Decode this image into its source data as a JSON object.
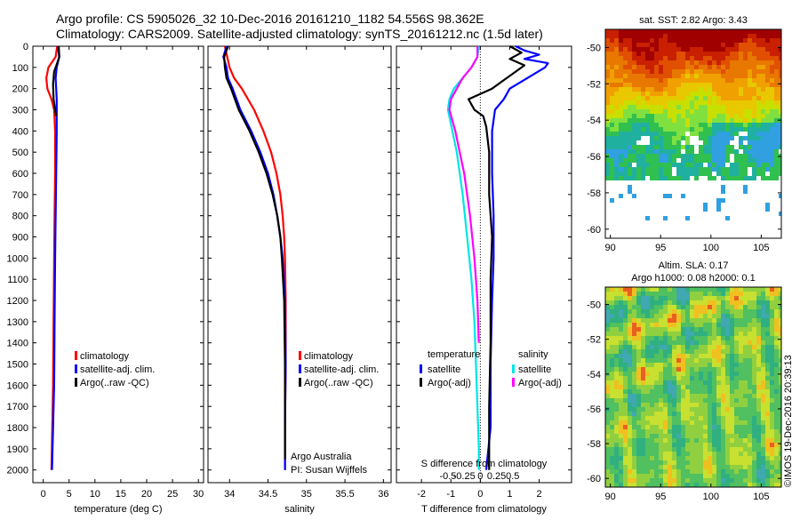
{
  "header": {
    "line1": "Argo profile: CS 5905026_32 10-Dec-2016 20161210_1182 54.556S 98.362E",
    "line2": "Climatology: CARS2009. Satellite-adjusted climatology: synTS_20161212.nc (1.5d later)"
  },
  "colors": {
    "climatology": "#ff0000",
    "satellite": "#0000ff",
    "argo": "#000000",
    "sat_salinity": "#00e5e5",
    "argo_salinity": "#ff00ff"
  },
  "chart_data": [
    {
      "type": "line",
      "id": "temperature",
      "xlabel": "temperature (deg C)",
      "xlim": [
        -2,
        31
      ],
      "ylim": [
        2060,
        0
      ],
      "xticks": [
        0,
        5,
        10,
        15,
        20,
        25,
        30
      ],
      "yticks": [
        0,
        100,
        200,
        300,
        400,
        500,
        600,
        700,
        800,
        900,
        1000,
        1100,
        1200,
        1300,
        1400,
        1500,
        1600,
        1700,
        1800,
        1900,
        2000
      ],
      "legend": [
        "climatology",
        "satellite-adj. clim.",
        "Argo(..raw -QC)"
      ],
      "series": [
        {
          "name": "climatology",
          "color": "#ff0000",
          "depth": [
            0,
            50,
            100,
            150,
            200,
            250,
            300,
            400,
            600,
            800,
            1000,
            1300,
            1600,
            2000
          ],
          "values": [
            2.7,
            2.4,
            1.0,
            0.6,
            0.8,
            1.6,
            2.1,
            2.3,
            2.3,
            2.2,
            2.1,
            2.0,
            1.9,
            1.6
          ]
        },
        {
          "name": "satellite-adj. clim.",
          "color": "#0000ff",
          "depth": [
            0,
            50,
            100,
            150,
            200,
            250,
            300,
            400,
            600,
            800,
            1000,
            1300,
            1600,
            2000
          ],
          "values": [
            2.8,
            3.1,
            2.6,
            2.4,
            2.5,
            2.6,
            2.6,
            2.6,
            2.5,
            2.4,
            2.3,
            2.2,
            2.1,
            1.7
          ]
        },
        {
          "name": "Argo(..raw -QC)",
          "color": "#000000",
          "depth": [
            0,
            50,
            80,
            120,
            180,
            250,
            300,
            330
          ],
          "values": [
            3.0,
            3.1,
            2.7,
            2.1,
            1.9,
            2.0,
            2.3,
            2.5
          ]
        }
      ]
    },
    {
      "type": "line",
      "id": "salinity",
      "xlabel": "salinity",
      "xlim": [
        33.72,
        36.1
      ],
      "ylim": [
        2060,
        0
      ],
      "xticks": [
        34,
        34.5,
        35,
        35.5,
        36
      ],
      "legend": [
        "climatology",
        "satellite-adj. clim.",
        "Argo(..raw -QC)"
      ],
      "annotations": [
        "Argo Australia",
        "PI: Susan Wijffels"
      ],
      "series": [
        {
          "name": "climatology",
          "color": "#ff0000",
          "depth": [
            0,
            50,
            100,
            150,
            200,
            300,
            400,
            500,
            600,
            700,
            800,
            900,
            1000,
            1200,
            1500,
            1800,
            2000
          ],
          "values": [
            33.94,
            33.97,
            34.0,
            34.06,
            34.16,
            34.32,
            34.44,
            34.54,
            34.61,
            34.66,
            34.69,
            34.71,
            34.72,
            34.73,
            34.73,
            34.72,
            34.72
          ]
        },
        {
          "name": "satellite-adj. clim.",
          "color": "#0000ff",
          "depth": [
            0,
            50,
            100,
            150,
            200,
            300,
            400,
            500,
            600,
            700,
            800,
            900,
            1000,
            1200,
            1500,
            1800,
            2000
          ],
          "values": [
            33.96,
            33.92,
            33.96,
            33.98,
            34.04,
            34.14,
            34.28,
            34.4,
            34.5,
            34.57,
            34.62,
            34.66,
            34.69,
            34.72,
            34.73,
            34.72,
            34.72
          ]
        },
        {
          "name": "Argo(..raw -QC)",
          "color": "#000000",
          "depth": [
            0,
            50,
            100,
            150,
            200,
            300,
            400,
            500,
            600,
            700,
            800,
            900,
            1000,
            1200,
            1500,
            1800,
            1950
          ],
          "values": [
            33.98,
            33.93,
            33.94,
            33.96,
            34.02,
            34.12,
            34.26,
            34.38,
            34.48,
            34.56,
            34.62,
            34.66,
            34.68,
            34.71,
            34.72,
            34.72,
            34.72
          ]
        }
      ]
    },
    {
      "type": "line",
      "id": "difference",
      "xlabel": "T difference from climatology",
      "top_label": "S difference from climatology",
      "xlim": [
        -2.85,
        3.1
      ],
      "ylim": [
        2060,
        0
      ],
      "xticks": [
        -2,
        -1,
        0,
        1,
        2
      ],
      "top_ticks": [
        {
          "v": -1.1,
          "label": "-0.5"
        },
        {
          "v": -0.55,
          "label": "-0.25"
        },
        {
          "v": 0,
          "label": "0"
        },
        {
          "v": 0.55,
          "label": "0.25"
        },
        {
          "v": 1.1,
          "label": "0.5"
        }
      ],
      "legend_left_title": "temperature",
      "legend_right_title": "salinity",
      "legend_left": [
        {
          "label": "satellite",
          "color": "#0000ff"
        },
        {
          "label": "Argo(-adj)",
          "color": "#000000"
        }
      ],
      "legend_right": [
        {
          "label": "satellite",
          "color": "#00e5e5"
        },
        {
          "label": "Argo(-adj)",
          "color": "#ff00ff"
        }
      ],
      "series": [
        {
          "name": "temperature satellite",
          "color": "#0000ff",
          "depth": [
            0,
            20,
            40,
            60,
            80,
            100,
            150,
            200,
            250,
            300,
            400,
            600,
            800,
            1000,
            1200,
            1500,
            1800,
            2000
          ],
          "values": [
            1.2,
            1.5,
            2.0,
            1.5,
            2.3,
            2.2,
            1.6,
            1.0,
            0.8,
            0.5,
            0.4,
            0.4,
            0.45,
            0.45,
            0.4,
            0.35,
            0.35,
            0.2
          ]
        },
        {
          "name": "temperature Argo(-adj)",
          "color": "#000000",
          "depth": [
            0,
            30,
            60,
            90,
            120,
            160,
            200,
            250,
            300,
            330,
            380,
            500,
            700,
            900,
            1100,
            1400,
            1700,
            2000
          ],
          "values": [
            1.0,
            1.4,
            1.0,
            1.5,
            1.2,
            0.8,
            0.4,
            -0.4,
            -0.2,
            0.1,
            0.2,
            0.3,
            0.3,
            0.4,
            0.35,
            0.35,
            0.3,
            0.3
          ]
        },
        {
          "name": "salinity satellite",
          "color": "#00e5e5",
          "depth": [
            0,
            50,
            100,
            150,
            200,
            250,
            300,
            400,
            500,
            700,
            900,
            1100,
            1300,
            1500,
            1700,
            1900,
            2000
          ],
          "values": [
            -0.05,
            -0.1,
            -0.3,
            -0.6,
            -0.9,
            -1.05,
            -1.1,
            -0.95,
            -0.8,
            -0.6,
            -0.45,
            -0.3,
            -0.2,
            -0.15,
            -0.1,
            -0.05,
            -0.05
          ]
        },
        {
          "name": "salinity Argo(-adj)",
          "color": "#ff00ff",
          "depth": [
            0,
            50,
            100,
            150,
            200,
            250,
            300,
            400,
            600,
            800,
            1000,
            1200,
            1400
          ],
          "values": [
            -0.1,
            -0.1,
            -0.3,
            -0.6,
            -0.8,
            -1.0,
            -1.05,
            -0.85,
            -0.55,
            -0.35,
            -0.2,
            -0.1,
            -0.05
          ]
        }
      ]
    },
    {
      "type": "heatmap",
      "id": "sst_map",
      "title": "sat. SST: 2.82 Argo: 3.43",
      "xlim": [
        89.5,
        107
      ],
      "ylim": [
        -60.5,
        -49
      ],
      "xticks": [
        90,
        95,
        100,
        105
      ],
      "yticks": [
        -50,
        -52,
        -54,
        -56,
        -58,
        -60
      ]
    },
    {
      "type": "heatmap",
      "id": "sla_map",
      "title_line1": "Altim. SLA: 0.17",
      "title_line2": "Argo h1000: 0.08 h2000: 0.1",
      "xlim": [
        89.5,
        107
      ],
      "ylim": [
        -60.5,
        -49
      ],
      "xticks": [
        90,
        95,
        100,
        105
      ],
      "yticks": [
        -50,
        -52,
        -54,
        -56,
        -58,
        -60
      ],
      "credit": "©IMOS 19-Dec-2016 20:39:13"
    }
  ]
}
